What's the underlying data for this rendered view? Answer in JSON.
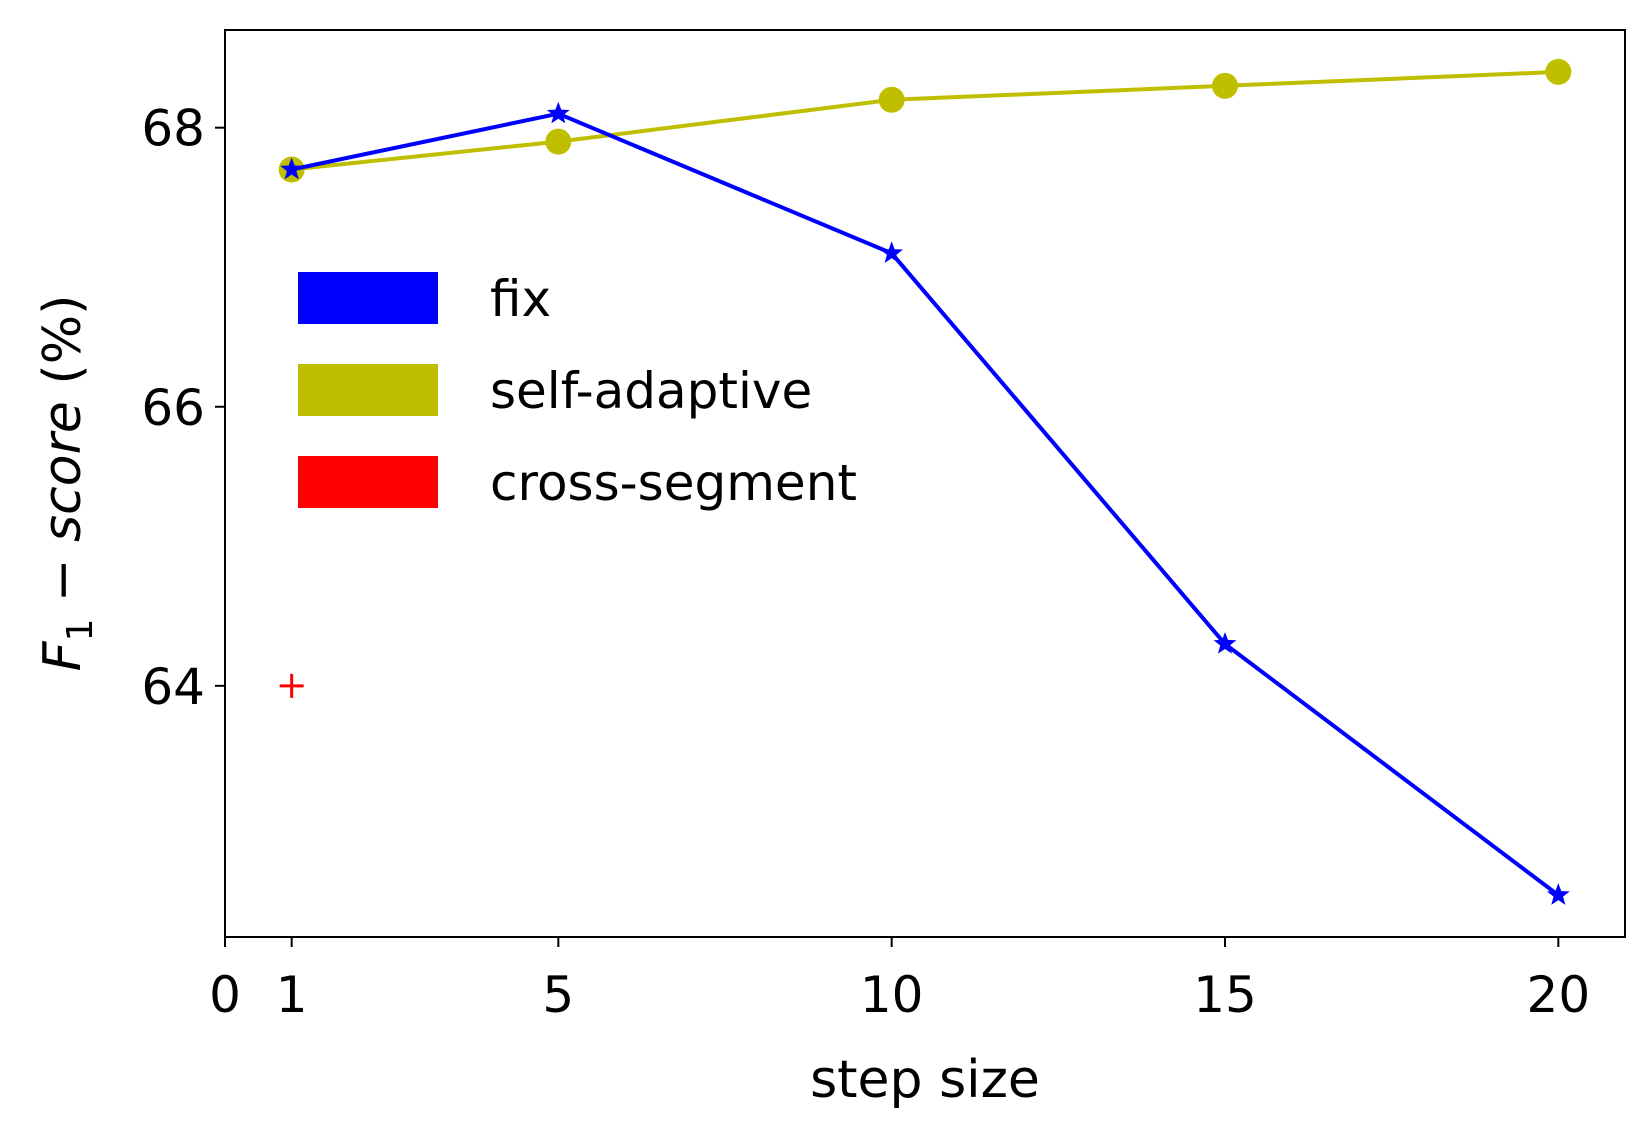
{
  "chart_data": {
    "type": "line",
    "xlabel": "step size",
    "ylabel": {
      "main": "F",
      "sub": "1",
      "rest": " − ",
      "italic": "score",
      "unit": " (%)"
    },
    "xlim": [
      0,
      21
    ],
    "ylim": [
      62.2,
      68.7
    ],
    "x_ticks": [
      0,
      1,
      5,
      10,
      15,
      20
    ],
    "x_tick_labels": [
      "0",
      "1",
      "5",
      "10",
      "15",
      "20"
    ],
    "y_ticks": [
      64,
      66,
      68
    ],
    "y_tick_labels": [
      "64",
      "66",
      "68"
    ],
    "grid": false,
    "legend_position": "center-left",
    "series": [
      {
        "name": "fix",
        "color": "#0000ff",
        "marker": "star",
        "x": [
          1,
          5,
          10,
          15,
          20
        ],
        "y": [
          67.7,
          68.1,
          67.1,
          64.3,
          62.5
        ]
      },
      {
        "name": "self-adaptive",
        "color": "#bfbf00",
        "marker": "circle",
        "x": [
          1,
          5,
          10,
          15,
          20
        ],
        "y": [
          67.7,
          67.9,
          68.2,
          68.3,
          68.4
        ]
      },
      {
        "name": "cross-segment",
        "color": "#ff0000",
        "marker": "plus",
        "x": [
          1
        ],
        "y": [
          64.0
        ]
      }
    ]
  }
}
